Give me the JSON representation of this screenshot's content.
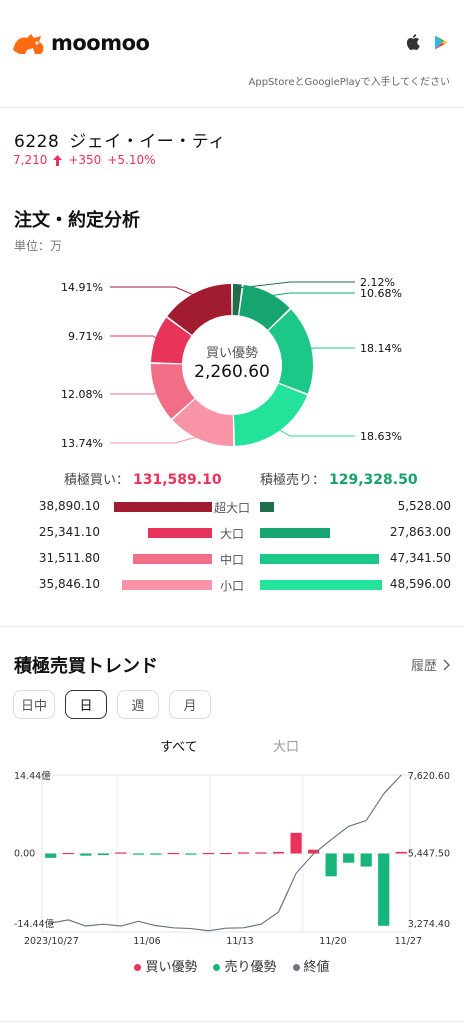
{
  "header": {
    "app_name": "moomoo",
    "store_note": "AppStoreとGooglePlayで入手してください",
    "icons": [
      "apple-icon",
      "google-play-icon"
    ]
  },
  "stock": {
    "code": "6228",
    "name": "ジェイ・イー・ティ",
    "price": "7,210",
    "change": "+350",
    "change_pct": "+5.10%"
  },
  "order_analysis": {
    "title": "注文・約定分析",
    "unit": "単位：万",
    "center_label": "買い優勢",
    "center_value": "2,260.60",
    "buy_total_label": "積極買い：",
    "buy_total": "131,589.10",
    "sell_total_label": "積極売り：",
    "sell_total": "129,328.50",
    "rows": [
      {
        "category": "超大口",
        "buy": "38,890.10",
        "sell": "5,528.00"
      },
      {
        "category": "大口",
        "buy": "25,341.10",
        "sell": "27,863.00"
      },
      {
        "category": "中口",
        "buy": "31,511.80",
        "sell": "47,341.50"
      },
      {
        "category": "小口",
        "buy": "35,846.10",
        "sell": "48,596.00"
      }
    ]
  },
  "trend": {
    "title": "積極売買トレンド",
    "history_label": "履歴",
    "period_tabs": [
      "日中",
      "日",
      "週",
      "月"
    ],
    "active_tab": "日",
    "filter_all": "すべて",
    "filter_large": "大口"
  },
  "chart_data": [
    {
      "type": "pie",
      "categories": [
        "超大口売り",
        "大口売り",
        "中口売り",
        "小口売り",
        "小口買い",
        "中口買い",
        "大口買い",
        "超大口買い"
      ],
      "values": [
        2.12,
        10.68,
        18.14,
        18.63,
        13.74,
        12.08,
        9.71,
        14.91
      ],
      "labels": [
        "2.12%",
        "10.68%",
        "18.14%",
        "18.63%",
        "13.74%",
        "12.08%",
        "9.71%",
        "14.91%"
      ],
      "colors": [
        "#1f6e4c",
        "#16a56f",
        "#1cc887",
        "#23e29a",
        "#f894a6",
        "#f26d86",
        "#e8345a",
        "#a11c30"
      ]
    },
    {
      "type": "bar",
      "categories": [
        "超大口",
        "大口",
        "中口",
        "小口"
      ],
      "series": [
        {
          "name": "積極買い",
          "values": [
            38890.1,
            25341.1,
            31511.8,
            35846.1
          ],
          "color_scale": [
            "#a11c30",
            "#e8345a",
            "#f26d86",
            "#f894a6"
          ]
        },
        {
          "name": "積極売り",
          "values": [
            5528.0,
            27863.0,
            47341.5,
            48596.0
          ],
          "color_scale": [
            "#1f6e4c",
            "#16a56f",
            "#1cc887",
            "#23e29a"
          ]
        }
      ]
    },
    {
      "type": "bar",
      "x_tick_labels": [
        "2023/10/27",
        "11/06",
        "11/13",
        "11/20",
        "11/27"
      ],
      "y_left_ticks": [
        "14.44億",
        "0.00",
        "-14.44億"
      ],
      "y_right_ticks": [
        "7,620.60",
        "5,447.50",
        "3,274.40"
      ],
      "ylim_left": [
        -14.44,
        14.44
      ],
      "ylim_right": [
        3274.4,
        7620.6
      ],
      "bars": [
        -0.8,
        0.1,
        -0.4,
        -0.3,
        0.2,
        -0.1,
        -0.1,
        0.1,
        -0.2,
        0.1,
        0.1,
        0.2,
        0.2,
        0.3,
        3.8,
        0.7,
        -4.2,
        -1.7,
        -2.4,
        -13.3,
        0.3
      ],
      "close": [
        3520,
        3610,
        3440,
        3490,
        3440,
        3570,
        3450,
        3390,
        3370,
        3310,
        3380,
        3390,
        3490,
        3830,
        4900,
        5440,
        5830,
        6200,
        6360,
        7100,
        7620
      ],
      "legend": [
        {
          "name": "買い優勢",
          "color": "#e8345a"
        },
        {
          "name": "売り優勢",
          "color": "#17b57a"
        },
        {
          "name": "終値",
          "color": "#6c7586"
        }
      ]
    }
  ]
}
